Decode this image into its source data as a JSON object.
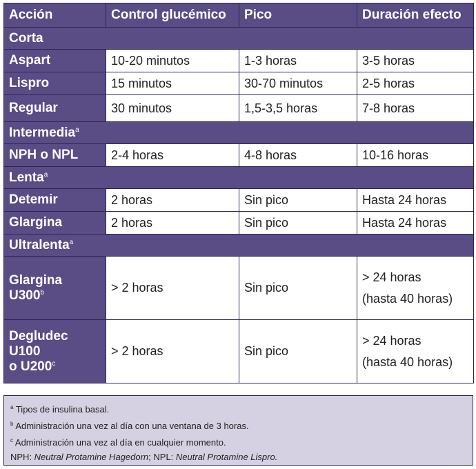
{
  "header": {
    "col1": "Acción",
    "col2": "Control glucémico",
    "col3": "Pico",
    "col4": "Duración efecto"
  },
  "groups": {
    "corta": {
      "label": "Corta",
      "mark": ""
    },
    "intermedia": {
      "label": "Intermedia",
      "mark": "a"
    },
    "lenta": {
      "label": "Lenta",
      "mark": "a"
    },
    "ultralenta": {
      "label": "Ultralenta",
      "mark": "a"
    }
  },
  "rows": {
    "aspart": {
      "name": "Aspart",
      "control": "10-20 minutos",
      "pico": "1-3 horas",
      "duracion": "3-5 horas"
    },
    "lispro": {
      "name": "Lispro",
      "control": "15 minutos",
      "pico": "30-70 minutos",
      "duracion": "2-5 horas"
    },
    "regular": {
      "name": "Regular",
      "control": "30 minutos",
      "pico": "1,5-3,5 horas",
      "duracion": "7-8 horas"
    },
    "nph": {
      "name": "NPH o NPL",
      "control": "2-4 horas",
      "pico": "4-8 horas",
      "duracion": "10-16 horas"
    },
    "detemir": {
      "name": "Detemir",
      "control": "2 horas",
      "pico": "Sin pico",
      "duracion": "Hasta 24 horas"
    },
    "glargina": {
      "name": "Glargina",
      "control": "2 horas",
      "pico": "Sin pico",
      "duracion": "Hasta 24 horas"
    },
    "glargina_u300": {
      "name": "Glargina U300",
      "mark": "b",
      "control": "> 2 horas",
      "pico": "Sin pico",
      "duracion_1": "> 24 horas",
      "duracion_2": "(hasta 40 horas)"
    },
    "degludec": {
      "name_1": "Degludec U100",
      "name_2": "o U200",
      "mark": "c",
      "control": "> 2 horas",
      "pico": "Sin pico",
      "duracion_1": "> 24 horas",
      "duracion_2": "(hasta 40 horas)"
    }
  },
  "footnotes": {
    "a_mark": "a",
    "a_text": "Tipos de insulina basal.",
    "b_mark": "b",
    "b_text": "Administración una vez al día con una ventana de 3 horas.",
    "c_mark": "c",
    "c_text": "Administración una vez al día en cualquier momento.",
    "abbr_1": "NPH: ",
    "abbr_2": "Neutral Protamine Hagedorn",
    "abbr_3": "; NPL: ",
    "abbr_4": "Neutral Protamine Lispro."
  },
  "colors": {
    "header_bg": "#5a4c85",
    "cell_bg": "#ffffff",
    "notes_bg": "#d6d1e2",
    "border": "#2d2550"
  }
}
